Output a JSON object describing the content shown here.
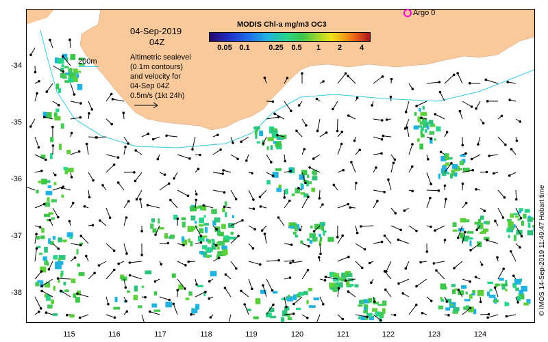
{
  "map": {
    "title_date": "04-Sep-2019",
    "title_time": "04Z",
    "contour_label": "200m",
    "info_lines": [
      "Altimetric sealevel",
      "(0.1m contours)",
      "and velocity for",
      "04-Sep 04Z",
      "0.5m/s (1kt 24h)"
    ],
    "y_ticks": [
      "-34",
      "-35",
      "-36",
      "-37",
      "-38"
    ],
    "x_ticks": [
      "115",
      "116",
      "117",
      "118",
      "119",
      "120",
      "121",
      "122",
      "123",
      "124"
    ],
    "lon_range": [
      114,
      125
    ],
    "lat_range": [
      -38.5,
      -33.0
    ],
    "land_color": "#f9c99b",
    "ocean_color": "#ffffff",
    "contour_color": "#35c9df"
  },
  "legend": {
    "title": "MODIS Chl-a mg/m3 OC3",
    "labels": [
      "0.05",
      "0.1",
      "0.25",
      "0.5",
      "1",
      "2",
      "4"
    ],
    "colors": [
      "#2a0a6b",
      "#1e2fc9",
      "#21b2e0",
      "#27d48a",
      "#3ec64a",
      "#a5d82c",
      "#eee21c",
      "#f0a11a",
      "#a8141b"
    ]
  },
  "argo": {
    "label": "Argo 0",
    "color": "#ff00cc"
  },
  "credit": "© IMOS 14-Sep-2019 11:49:47 Hobart time"
}
